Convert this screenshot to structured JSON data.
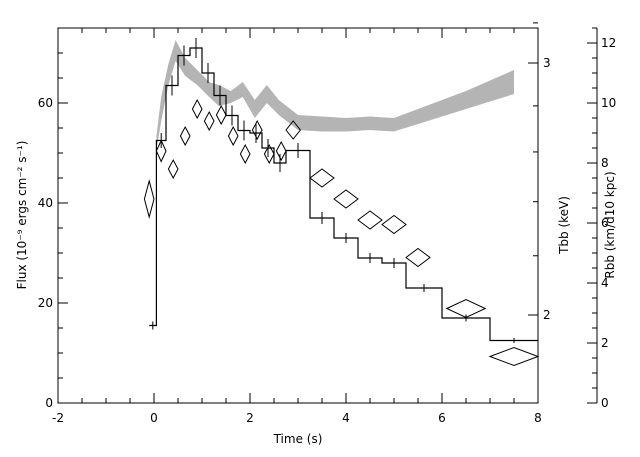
{
  "chart_data": {
    "type": "line",
    "title": "",
    "xlabel": "Time (s)",
    "ylabel_left": "Flux (10⁻⁹ ergs cm⁻² s⁻¹)",
    "ylabel_temp": "T<sub>bb</sub> (keV)",
    "ylabel_temp_text": "Tbb (keV)",
    "ylabel_radius_text": "Rbb (km/d10 kpc)",
    "xlim": [
      -2,
      8
    ],
    "ylim_left": [
      0,
      75
    ],
    "ylim_right": [
      0,
      12.5
    ],
    "x_ticks": [
      "-2",
      "0",
      "2",
      "4",
      "6",
      "8"
    ],
    "y_left_ticks": [
      "0",
      "20",
      "40",
      "60"
    ],
    "y_right_ticks": [
      "0",
      "2",
      "4",
      "6",
      "8",
      "10",
      "12"
    ],
    "temp_ticks": [
      "2",
      "3"
    ],
    "grid": false,
    "series": [
      {
        "kind": "histogram",
        "points": [
          {
            "x0": -0.1,
            "x1": 0.05,
            "y": 15.5,
            "err": 0.8
          },
          {
            "x0": 0.05,
            "x1": 0.25,
            "y": 52.5,
            "err": 1.5
          },
          {
            "x0": 0.25,
            "x1": 0.5,
            "y": 63.5,
            "err": 2.0
          },
          {
            "x0": 0.5,
            "x1": 0.75,
            "y": 69.5,
            "err": 2.0
          },
          {
            "x0": 0.75,
            "x1": 1.0,
            "y": 71.0,
            "err": 2.0
          },
          {
            "x0": 1.0,
            "x1": 1.25,
            "y": 66.0,
            "err": 2.0
          },
          {
            "x0": 1.25,
            "x1": 1.5,
            "y": 61.5,
            "err": 2.0
          },
          {
            "x0": 1.5,
            "x1": 1.75,
            "y": 57.5,
            "err": 2.0
          },
          {
            "x0": 1.75,
            "x1": 2.0,
            "y": 54.5,
            "err": 2.0
          },
          {
            "x0": 2.0,
            "x1": 2.25,
            "y": 54.0,
            "err": 2.0
          },
          {
            "x0": 2.25,
            "x1": 2.5,
            "y": 51.0,
            "err": 1.8
          },
          {
            "x0": 2.5,
            "x1": 2.75,
            "y": 48.0,
            "err": 1.8
          },
          {
            "x0": 2.75,
            "x1": 3.25,
            "y": 50.5,
            "err": 1.5
          },
          {
            "x0": 3.25,
            "x1": 3.75,
            "y": 37.0,
            "err": 1.2
          },
          {
            "x0": 3.75,
            "x1": 4.25,
            "y": 33.0,
            "err": 1.0
          },
          {
            "x0": 4.25,
            "x1": 4.75,
            "y": 29.0,
            "err": 1.0
          },
          {
            "x0": 4.75,
            "x1": 5.25,
            "y": 28.0,
            "err": 1.0
          },
          {
            "x0": 5.25,
            "x1": 6.0,
            "y": 23.0,
            "err": 0.8
          },
          {
            "x0": 6.0,
            "x1": 7.0,
            "y": 17.0,
            "err": 0.7
          },
          {
            "x0": 7.0,
            "x1": 8.0,
            "y": 12.5,
            "err": 0.5
          }
        ]
      },
      {
        "kind": "diamonds",
        "points": [
          {
            "x": -0.1,
            "y": 6.8,
            "dx": 0.1,
            "dy": 0.6
          },
          {
            "x": 0.15,
            "y": 8.4,
            "dx": 0.1,
            "dy": 0.35
          },
          {
            "x": 0.4,
            "y": 7.8,
            "dx": 0.1,
            "dy": 0.3
          },
          {
            "x": 0.65,
            "y": 8.9,
            "dx": 0.1,
            "dy": 0.3
          },
          {
            "x": 0.9,
            "y": 9.8,
            "dx": 0.1,
            "dy": 0.3
          },
          {
            "x": 1.15,
            "y": 9.4,
            "dx": 0.1,
            "dy": 0.3
          },
          {
            "x": 1.4,
            "y": 9.6,
            "dx": 0.1,
            "dy": 0.3
          },
          {
            "x": 1.65,
            "y": 8.9,
            "dx": 0.1,
            "dy": 0.3
          },
          {
            "x": 1.9,
            "y": 8.3,
            "dx": 0.1,
            "dy": 0.3
          },
          {
            "x": 2.15,
            "y": 9.1,
            "dx": 0.1,
            "dy": 0.3
          },
          {
            "x": 2.4,
            "y": 8.3,
            "dx": 0.1,
            "dy": 0.3
          },
          {
            "x": 2.65,
            "y": 8.4,
            "dx": 0.1,
            "dy": 0.3
          },
          {
            "x": 2.9,
            "y": 9.1,
            "dx": 0.15,
            "dy": 0.3
          },
          {
            "x": 3.5,
            "y": 7.5,
            "dx": 0.25,
            "dy": 0.3
          },
          {
            "x": 4.0,
            "y": 6.8,
            "dx": 0.25,
            "dy": 0.3
          },
          {
            "x": 4.5,
            "y": 6.1,
            "dx": 0.25,
            "dy": 0.3
          },
          {
            "x": 5.0,
            "y": 5.95,
            "dx": 0.25,
            "dy": 0.3
          },
          {
            "x": 5.5,
            "y": 4.85,
            "dx": 0.25,
            "dy": 0.3
          },
          {
            "x": 6.5,
            "y": 3.15,
            "dx": 0.4,
            "dy": 0.3
          },
          {
            "x": 7.5,
            "y": 1.55,
            "dx": 0.5,
            "dy": 0.3
          }
        ]
      },
      {
        "kind": "band",
        "points": [
          {
            "x": 0.05,
            "lo": 8.4,
            "hi": 8.9
          },
          {
            "x": 0.15,
            "lo": 9.4,
            "hi": 10.2
          },
          {
            "x": 0.3,
            "lo": 10.6,
            "hi": 11.3
          },
          {
            "x": 0.45,
            "lo": 11.4,
            "hi": 12.1
          },
          {
            "x": 0.65,
            "lo": 10.9,
            "hi": 11.5
          },
          {
            "x": 0.9,
            "lo": 10.6,
            "hi": 11.1
          },
          {
            "x": 1.15,
            "lo": 10.2,
            "hi": 10.7
          },
          {
            "x": 1.35,
            "lo": 9.9,
            "hi": 10.6
          },
          {
            "x": 1.6,
            "lo": 10.0,
            "hi": 10.4
          },
          {
            "x": 1.85,
            "lo": 10.2,
            "hi": 10.7
          },
          {
            "x": 2.1,
            "lo": 9.5,
            "hi": 10.1
          },
          {
            "x": 2.35,
            "lo": 10.0,
            "hi": 10.6
          },
          {
            "x": 2.6,
            "lo": 9.6,
            "hi": 10.1
          },
          {
            "x": 3.0,
            "lo": 9.1,
            "hi": 9.6
          },
          {
            "x": 3.5,
            "lo": 9.05,
            "hi": 9.55
          },
          {
            "x": 4.0,
            "lo": 9.05,
            "hi": 9.5
          },
          {
            "x": 4.5,
            "lo": 9.1,
            "hi": 9.55
          },
          {
            "x": 5.0,
            "lo": 9.05,
            "hi": 9.5
          },
          {
            "x": 5.5,
            "lo": 9.3,
            "hi": 9.8
          },
          {
            "x": 6.0,
            "lo": 9.55,
            "hi": 10.1
          },
          {
            "x": 6.5,
            "lo": 9.8,
            "hi": 10.4
          },
          {
            "x": 7.0,
            "lo": 10.05,
            "hi": 10.75
          },
          {
            "x": 7.5,
            "lo": 10.3,
            "hi": 11.1
          }
        ]
      }
    ],
    "colors": {
      "band": "#b4b4b4",
      "line": "#000000"
    }
  }
}
